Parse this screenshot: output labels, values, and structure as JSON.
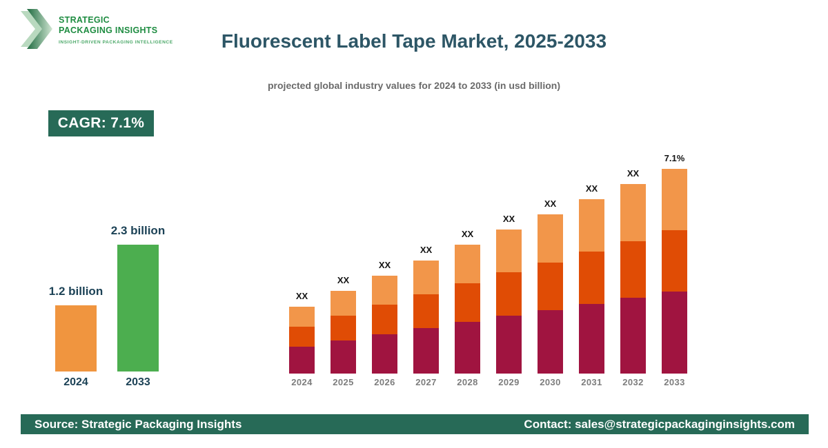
{
  "logo": {
    "name_line1": "STRATEGIC",
    "name_line2": "PACKAGING INSIGHTS",
    "tagline": "INSIGHT-DRIVEN PACKAGING INTELLIGENCE"
  },
  "header": {
    "title": "Fluorescent Label Tape Market, 2025-2033",
    "subtitle": "projected global industry values for 2024 to 2033 (in usd billion)"
  },
  "cagr_badge": {
    "label": "CAGR: 7.1%"
  },
  "footer": {
    "source": "Source: Strategic Packaging Insights",
    "contact": "Contact: sales@strategicpackaginginsights.com"
  },
  "colors": {
    "title": "#2d5666",
    "subtitle": "#6a6a6a",
    "badge_bg": "#276a57",
    "footer_bg": "#276a57",
    "logo_green": "#1e8c41",
    "logo_light_green": "#4aa767",
    "axis_label": "#7d7d7d",
    "mini_label": "#1c4256"
  },
  "chart_data": [
    {
      "id": "growth-comparison",
      "type": "bar",
      "title": "",
      "categories": [
        "2024",
        "2033"
      ],
      "values": [
        1.2,
        2.3
      ],
      "value_labels": [
        "1.2 billion",
        "2.3 billion"
      ],
      "unit": "usd billion",
      "colors": [
        "#f0953f",
        "#4cae4f"
      ],
      "legend": "none",
      "axes": "hidden"
    },
    {
      "id": "annual-projection",
      "type": "bar",
      "stacked": true,
      "categories": [
        "2024",
        "2025",
        "2026",
        "2027",
        "2028",
        "2029",
        "2030",
        "2031",
        "2032",
        "2033"
      ],
      "series": [
        {
          "name": "segment-bottom",
          "color": "#a01440",
          "values": [
            39,
            48,
            57,
            66,
            75,
            84,
            92,
            101,
            110,
            119
          ]
        },
        {
          "name": "segment-middle",
          "color": "#e04c05",
          "values": [
            29,
            36,
            43,
            49,
            56,
            63,
            69,
            76,
            82,
            89
          ]
        },
        {
          "name": "segment-top",
          "color": "#f2964a",
          "values": [
            29,
            36,
            42,
            49,
            56,
            62,
            70,
            76,
            83,
            89
          ]
        }
      ],
      "bar_labels": [
        "XX",
        "XX",
        "XX",
        "XX",
        "XX",
        "XX",
        "XX",
        "XX",
        "XX",
        "7.1%"
      ],
      "note": "actual values masked as XX in source image; series values are relative heights estimated from pixels",
      "legend": "none",
      "axes": "hidden"
    }
  ]
}
